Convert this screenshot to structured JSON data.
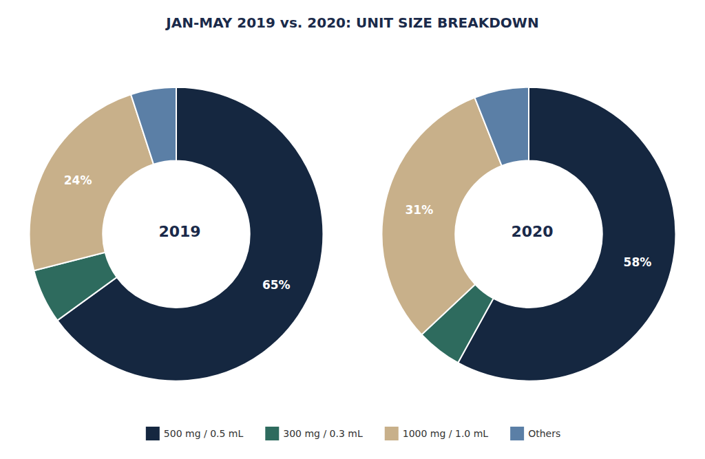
{
  "chart_data": [
    {
      "type": "pie",
      "title": "JAN-MAY 2019 vs. 2020: UNIT SIZE BREAKDOWN",
      "annotations": [
        "2019"
      ],
      "categories": [
        "500 mg / 0.5 mL",
        "300 mg / 0.3 mL",
        "1000 mg / 1.0 mL",
        "Others"
      ],
      "values": [
        65,
        6,
        24,
        5
      ],
      "value_labels": [
        "65%",
        null,
        "24%",
        null
      ],
      "colors": [
        "#152740",
        "#2e6b5e",
        "#c8b08a",
        "#5b7fa6"
      ],
      "data_labels": true,
      "legend": "bottom"
    },
    {
      "type": "pie",
      "annotations": [
        "2020"
      ],
      "categories": [
        "500 mg / 0.5 mL",
        "300 mg / 0.3 mL",
        "1000 mg / 1.0 mL",
        "Others"
      ],
      "values": [
        58,
        5,
        31,
        6
      ],
      "value_labels": [
        "58%",
        null,
        "31%",
        null
      ],
      "colors": [
        "#152740",
        "#2e6b5e",
        "#c8b08a",
        "#5b7fa6"
      ],
      "data_labels": true,
      "legend": "bottom"
    }
  ]
}
